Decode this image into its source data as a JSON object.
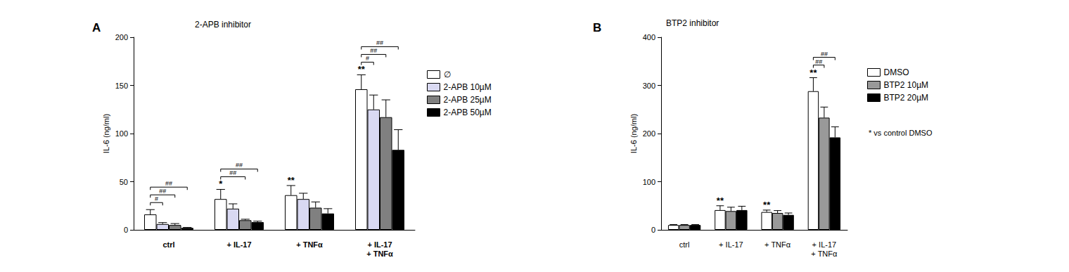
{
  "chart_data": [
    {
      "type": "bar",
      "panel_label": "A",
      "title": "2-APB inhibitor",
      "y_label": "IL-6 (ng/ml)",
      "categories": [
        "ctrl",
        "+ IL-17",
        "+ TNFα",
        "+ IL-17\n+ TNFα"
      ],
      "series": [
        {
          "name": "∅",
          "color": "#ffffff",
          "values": [
            16,
            32,
            36,
            146
          ],
          "errors": [
            5,
            10,
            10,
            15
          ]
        },
        {
          "name": "2-APB 10µM",
          "color": "#d9d9f2",
          "values": [
            6,
            22,
            32,
            125
          ],
          "errors": [
            1.5,
            5,
            6,
            15
          ]
        },
        {
          "name": "2-APB 25µM",
          "color": "#808080",
          "values": [
            5,
            10,
            23,
            117
          ],
          "errors": [
            1.5,
            1,
            6,
            18
          ]
        },
        {
          "name": "2-APB 50µM",
          "color": "#000000",
          "values": [
            2,
            8,
            17,
            83
          ],
          "errors": [
            0.5,
            1,
            5,
            21
          ]
        }
      ],
      "stars": [
        null,
        "*",
        "**",
        "**"
      ],
      "comparisons": [
        {
          "category": "ctrl",
          "from": "∅",
          "to": "2-APB 10µM",
          "label": "#"
        },
        {
          "category": "ctrl",
          "from": "∅",
          "to": "2-APB 25µM",
          "label": "##"
        },
        {
          "category": "ctrl",
          "from": "∅",
          "to": "2-APB 50µM",
          "label": "##"
        },
        {
          "category": "+ IL-17",
          "from": "∅",
          "to": "2-APB 25µM",
          "label": "##"
        },
        {
          "category": "+ IL-17",
          "from": "∅",
          "to": "2-APB 50µM",
          "label": "##"
        },
        {
          "category": "+ IL-17\n+ TNFα",
          "from": "∅",
          "to": "2-APB 10µM",
          "label": "#"
        },
        {
          "category": "+ IL-17\n+ TNFα",
          "from": "∅",
          "to": "2-APB 25µM",
          "label": "##"
        },
        {
          "category": "+ IL-17\n+ TNFα",
          "from": "∅",
          "to": "2-APB 50µM",
          "label": "##"
        }
      ],
      "ylim": [
        0,
        200
      ],
      "yticks": [
        0,
        50,
        100,
        150,
        200
      ],
      "grid": false,
      "legend": "right"
    },
    {
      "type": "bar",
      "panel_label": "B",
      "title": "BTP2 inhibitor",
      "y_label": "IL-6 (ng/ml)",
      "annotation": "* vs control DMSO",
      "categories": [
        "ctrl",
        "+ IL-17",
        "+ TNFα",
        "+ IL-17\n+ TNFα"
      ],
      "series": [
        {
          "name": "DMSO",
          "color": "#ffffff",
          "values": [
            10,
            41,
            37,
            288
          ],
          "errors": [
            1,
            9,
            4,
            28
          ]
        },
        {
          "name": "BTP2 10µM",
          "color": "#999999",
          "values": [
            10,
            39,
            35,
            233
          ],
          "errors": [
            1,
            8,
            5,
            22
          ]
        },
        {
          "name": "BTP2 20µM",
          "color": "#000000",
          "values": [
            10,
            41,
            31,
            192
          ],
          "errors": [
            1,
            8,
            4,
            22
          ]
        }
      ],
      "stars": [
        null,
        "**",
        "**",
        "**"
      ],
      "comparisons": [
        {
          "category": "+ IL-17\n+ TNFα",
          "from": "DMSO",
          "to": "BTP2 10µM",
          "label": "##"
        },
        {
          "category": "+ IL-17\n+ TNFα",
          "from": "DMSO",
          "to": "BTP2 20µM",
          "label": "##"
        }
      ],
      "ylim": [
        0,
        400
      ],
      "yticks": [
        0,
        100,
        200,
        300,
        400
      ],
      "grid": false,
      "legend": "right"
    }
  ]
}
